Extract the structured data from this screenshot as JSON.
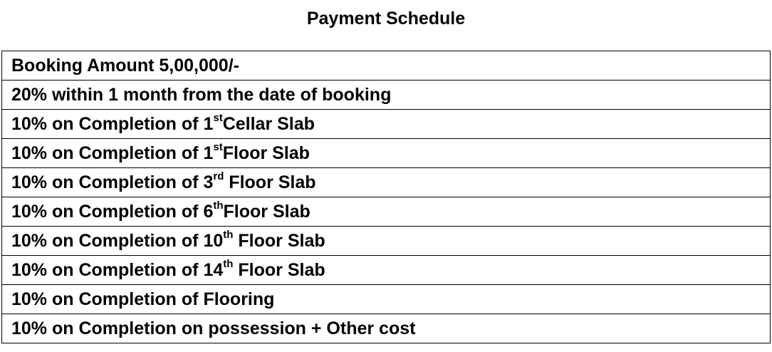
{
  "title": "Payment Schedule",
  "rows": [
    {
      "pre": "Booking Amount 5,00,000/-",
      "sup": "",
      "post": ""
    },
    {
      "pre": "20% within 1 month from the date of booking",
      "sup": "",
      "post": ""
    },
    {
      "pre": "10% on Completion of 1",
      "sup": "st",
      "post": "Cellar Slab"
    },
    {
      "pre": "10% on Completion of 1",
      "sup": "st",
      "post": "Floor Slab"
    },
    {
      "pre": "10% on Completion of 3",
      "sup": "rd",
      "post": " Floor Slab"
    },
    {
      "pre": "10% on Completion of 6",
      "sup": "th",
      "post": "Floor Slab"
    },
    {
      "pre": "10% on Completion of 10",
      "sup": "th",
      "post": " Floor Slab"
    },
    {
      "pre": "10% on Completion of 14",
      "sup": "th",
      "post": " Floor Slab"
    },
    {
      "pre": "10% on Completion of Flooring",
      "sup": "",
      "post": ""
    },
    {
      "pre": "10% on Completion on possession + Other cost",
      "sup": "",
      "post": ""
    }
  ]
}
